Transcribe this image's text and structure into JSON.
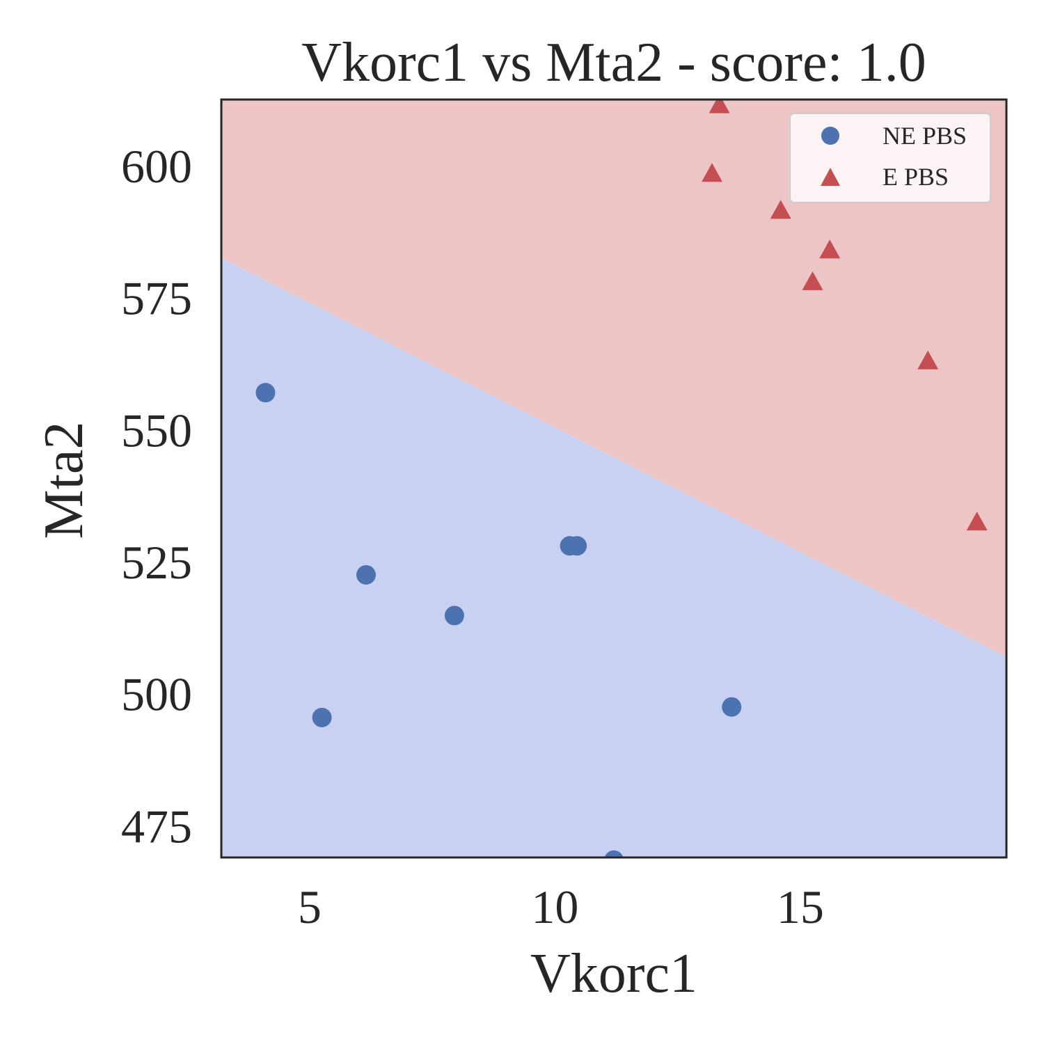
{
  "chart_data": {
    "type": "scatter",
    "title": "Vkorc1 vs Mta2 - score: 1.0",
    "xlabel": "Vkorc1",
    "ylabel": "Mta2",
    "xlim": [
      3.2,
      19.2
    ],
    "ylim": [
      469.0,
      612.5
    ],
    "xticks": [
      5,
      10,
      15
    ],
    "yticks": [
      475,
      500,
      525,
      550,
      575,
      600
    ],
    "grid": false,
    "legend_position": "top-right",
    "decision_boundary": {
      "points": [
        [
          3.2,
          582.5
        ],
        [
          19.2,
          507.0
        ]
      ],
      "region_above": "E PBS",
      "region_below": "NE PBS"
    },
    "series": [
      {
        "name": "NE PBS",
        "marker": "circle",
        "color": "#4c72b0",
        "region_color": "#c9d1f2",
        "points": [
          [
            4.1,
            557.0
          ],
          [
            5.25,
            495.5
          ],
          [
            6.15,
            522.5
          ],
          [
            7.95,
            514.8
          ],
          [
            10.3,
            528.0
          ],
          [
            10.45,
            528.0
          ],
          [
            11.2,
            468.5
          ],
          [
            13.6,
            497.5
          ]
        ]
      },
      {
        "name": "E PBS",
        "marker": "triangle",
        "color": "#c44e52",
        "region_color": "#eec5c5",
        "points": [
          [
            13.2,
            598.5
          ],
          [
            13.35,
            611.5
          ],
          [
            14.6,
            591.5
          ],
          [
            15.25,
            578.0
          ],
          [
            15.6,
            584.0
          ],
          [
            17.6,
            563.0
          ],
          [
            18.6,
            532.5
          ]
        ]
      }
    ]
  }
}
